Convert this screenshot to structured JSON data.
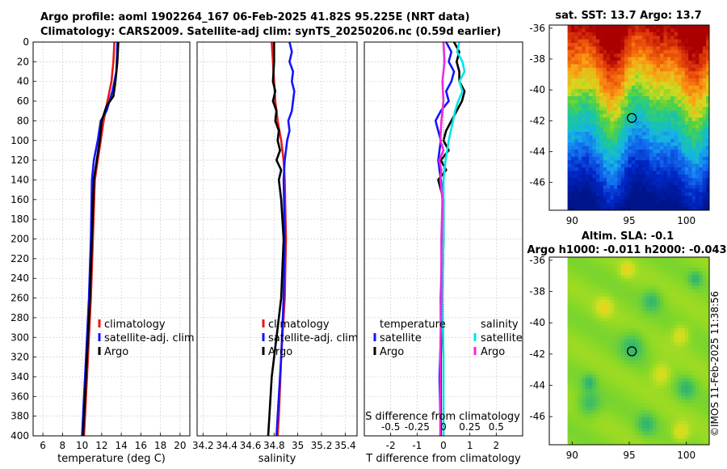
{
  "header": {
    "title_line1": "Argo profile: aoml 1902264_167 06-Feb-2025 41.82S 95.225E (NRT data)",
    "title_line2": "Climatology: CARS2009. Satellite-adj clim: synTS_20250206.nc (0.59d earlier)"
  },
  "credit": "©IMOS 11-Feb-2025 11:38:56",
  "colors": {
    "climatology": "#e41a1c",
    "satellite": "#1414ff",
    "argo": "#000000",
    "cyan": "#00e5e5",
    "magenta": "#ff22dd"
  },
  "chart_data": [
    {
      "type": "line",
      "id": "temperature",
      "xlabel": "temperature (deg C)",
      "xlim": [
        5,
        21
      ],
      "xticks": [
        6,
        8,
        10,
        12,
        14,
        16,
        18,
        20
      ],
      "ylim": [
        0,
        400
      ],
      "yticks": [
        0,
        20,
        40,
        60,
        80,
        100,
        120,
        140,
        160,
        180,
        200,
        220,
        240,
        260,
        280,
        300,
        320,
        340,
        360,
        380,
        400
      ],
      "legend": [
        "climatology",
        "satellite-adj. clim",
        "Argo"
      ],
      "series": [
        {
          "name": "climatology",
          "color": "#e41a1c",
          "points": [
            [
              13.3,
              0
            ],
            [
              13.2,
              20
            ],
            [
              13.0,
              40
            ],
            [
              12.6,
              60
            ],
            [
              12.2,
              80
            ],
            [
              11.9,
              100
            ],
            [
              11.6,
              120
            ],
            [
              11.3,
              140
            ],
            [
              11.1,
              200
            ],
            [
              10.9,
              260
            ],
            [
              10.6,
              320
            ],
            [
              10.3,
              380
            ],
            [
              10.2,
              400
            ]
          ]
        },
        {
          "name": "satellite-adj. clim",
          "color": "#1414ff",
          "points": [
            [
              13.6,
              0
            ],
            [
              13.5,
              30
            ],
            [
              13.1,
              50
            ],
            [
              12.5,
              70
            ],
            [
              11.9,
              80
            ],
            [
              11.6,
              100
            ],
            [
              11.2,
              120
            ],
            [
              11.0,
              140
            ],
            [
              10.9,
              200
            ],
            [
              10.7,
              260
            ],
            [
              10.4,
              320
            ],
            [
              10.1,
              380
            ],
            [
              10.0,
              400
            ]
          ]
        },
        {
          "name": "Argo",
          "color": "#000000",
          "points": [
            [
              13.7,
              0
            ],
            [
              13.6,
              20
            ],
            [
              13.4,
              40
            ],
            [
              13.2,
              55
            ],
            [
              12.5,
              65
            ],
            [
              12.0,
              80
            ],
            [
              11.8,
              100
            ],
            [
              11.5,
              120
            ],
            [
              11.2,
              140
            ],
            [
              11.0,
              200
            ],
            [
              10.8,
              260
            ],
            [
              10.5,
              320
            ],
            [
              10.2,
              380
            ],
            [
              10.1,
              400
            ]
          ]
        }
      ]
    },
    {
      "type": "line",
      "id": "salinity",
      "xlabel": "salinity",
      "xlim": [
        34.15,
        35.5
      ],
      "xticks": [
        34.2,
        34.4,
        34.6,
        34.8,
        35,
        35.2,
        35.4
      ],
      "xticklabels": [
        "34.2",
        "34.4",
        "34.6",
        "34.8",
        "35",
        "35.2",
        "35.4"
      ],
      "ylim": [
        0,
        400
      ],
      "legend": [
        "climatology",
        "satellite-adj. clim",
        "Argo"
      ],
      "series": [
        {
          "name": "climatology",
          "color": "#e41a1c",
          "points": [
            [
              34.78,
              0
            ],
            [
              34.79,
              20
            ],
            [
              34.8,
              40
            ],
            [
              34.81,
              60
            ],
            [
              34.83,
              80
            ],
            [
              34.86,
              100
            ],
            [
              34.88,
              120
            ],
            [
              34.89,
              140
            ],
            [
              34.9,
              200
            ],
            [
              34.89,
              260
            ],
            [
              34.86,
              320
            ],
            [
              34.84,
              380
            ],
            [
              34.83,
              400
            ]
          ]
        },
        {
          "name": "satellite-adj. clim",
          "color": "#1414ff",
          "points": [
            [
              34.93,
              0
            ],
            [
              34.95,
              10
            ],
            [
              34.93,
              20
            ],
            [
              34.96,
              30
            ],
            [
              34.95,
              40
            ],
            [
              34.97,
              50
            ],
            [
              34.96,
              60
            ],
            [
              34.95,
              70
            ],
            [
              34.92,
              80
            ],
            [
              34.93,
              90
            ],
            [
              34.91,
              100
            ],
            [
              34.89,
              120
            ],
            [
              34.88,
              140
            ],
            [
              34.89,
              200
            ],
            [
              34.88,
              260
            ],
            [
              34.86,
              320
            ],
            [
              34.83,
              380
            ],
            [
              34.82,
              400
            ]
          ]
        },
        {
          "name": "Argo",
          "color": "#000000",
          "points": [
            [
              34.8,
              0
            ],
            [
              34.8,
              20
            ],
            [
              34.79,
              40
            ],
            [
              34.81,
              50
            ],
            [
              34.79,
              60
            ],
            [
              34.82,
              70
            ],
            [
              34.81,
              80
            ],
            [
              34.84,
              90
            ],
            [
              34.83,
              100
            ],
            [
              34.85,
              110
            ],
            [
              34.82,
              120
            ],
            [
              34.86,
              130
            ],
            [
              34.84,
              140
            ],
            [
              34.86,
              160
            ],
            [
              34.88,
              200
            ],
            [
              34.86,
              260
            ],
            [
              34.82,
              300
            ],
            [
              34.78,
              340
            ],
            [
              34.76,
              380
            ],
            [
              34.75,
              400
            ]
          ]
        }
      ]
    },
    {
      "type": "line",
      "id": "difference",
      "xlabel": "T difference from climatology",
      "top_axis_label": "S difference from climatology",
      "xlim": [
        -3,
        3
      ],
      "xticks": [
        -2,
        -1,
        0,
        1,
        2
      ],
      "s_xlim": [
        -0.75,
        0.75
      ],
      "s_xticks": [
        -0.5,
        -0.25,
        0,
        0.25,
        0.5
      ],
      "s_xticklabels": [
        "-0.5",
        "-0.25",
        "0",
        "0.25",
        "0.5"
      ],
      "ylim": [
        0,
        400
      ],
      "legend_temperature": {
        "heading": "temperature",
        "items": [
          "satellite",
          "Argo"
        ]
      },
      "legend_salinity": {
        "heading": "salinity",
        "items": [
          "satellite",
          "Argo"
        ]
      },
      "series": [
        {
          "name": "temperature satellite",
          "color": "#1414ff",
          "axis": "T",
          "points": [
            [
              0.1,
              0
            ],
            [
              0.3,
              10
            ],
            [
              0.2,
              20
            ],
            [
              0.4,
              30
            ],
            [
              0.3,
              40
            ],
            [
              0.1,
              50
            ],
            [
              0.2,
              60
            ],
            [
              -0.1,
              70
            ],
            [
              -0.3,
              80
            ],
            [
              -0.1,
              100
            ],
            [
              -0.2,
              120
            ],
            [
              -0.1,
              140
            ],
            [
              0,
              160
            ],
            [
              -0.05,
              200
            ],
            [
              -0.1,
              260
            ],
            [
              -0.1,
              300
            ],
            [
              -0.15,
              340
            ],
            [
              -0.1,
              400
            ]
          ]
        },
        {
          "name": "temperature Argo",
          "color": "#000000",
          "axis": "T",
          "points": [
            [
              0.4,
              0
            ],
            [
              0.6,
              10
            ],
            [
              0.5,
              20
            ],
            [
              0.6,
              30
            ],
            [
              0.6,
              40
            ],
            [
              0.8,
              50
            ],
            [
              0.7,
              60
            ],
            [
              0.5,
              70
            ],
            [
              0.3,
              80
            ],
            [
              0.1,
              90
            ],
            [
              0,
              100
            ],
            [
              0.2,
              110
            ],
            [
              -0.1,
              120
            ],
            [
              0.1,
              130
            ],
            [
              -0.2,
              140
            ],
            [
              0,
              160
            ],
            [
              0,
              200
            ],
            [
              -0.05,
              260
            ],
            [
              -0.1,
              320
            ],
            [
              -0.1,
              400
            ]
          ]
        },
        {
          "name": "salinity satellite",
          "color": "#00e5e5",
          "axis": "S",
          "points": [
            [
              0.15,
              0
            ],
            [
              0.13,
              10
            ],
            [
              0.18,
              20
            ],
            [
              0.2,
              30
            ],
            [
              0.15,
              40
            ],
            [
              0.18,
              50
            ],
            [
              0.14,
              60
            ],
            [
              0.11,
              70
            ],
            [
              0.09,
              80
            ],
            [
              0.07,
              90
            ],
            [
              0.05,
              100
            ],
            [
              0.02,
              120
            ],
            [
              0,
              140
            ],
            [
              0,
              200
            ],
            [
              -0.01,
              260
            ],
            [
              0,
              320
            ],
            [
              0,
              400
            ]
          ]
        },
        {
          "name": "salinity Argo",
          "color": "#ff22dd",
          "axis": "S",
          "points": [
            [
              0,
              0
            ],
            [
              0.01,
              20
            ],
            [
              -0.01,
              40
            ],
            [
              0,
              60
            ],
            [
              -0.02,
              80
            ],
            [
              -0.03,
              100
            ],
            [
              0,
              110
            ],
            [
              -0.04,
              120
            ],
            [
              -0.02,
              130
            ],
            [
              -0.03,
              140
            ],
            [
              -0.01,
              160
            ],
            [
              -0.02,
              200
            ],
            [
              -0.02,
              260
            ],
            [
              -0.03,
              320
            ],
            [
              -0.03,
              400
            ]
          ]
        }
      ]
    },
    {
      "type": "heatmap",
      "id": "sst_map",
      "title": "sat. SST: 13.7 Argo: 13.7",
      "xlim": [
        88,
        102
      ],
      "ylim": [
        -47.8,
        -35.8
      ],
      "xticks": [
        90,
        95,
        100
      ],
      "yticks": [
        -36,
        -38,
        -40,
        -42,
        -44,
        -46
      ],
      "data_xmin": 89.6,
      "marker": {
        "lon": 95.225,
        "lat": -41.82
      }
    },
    {
      "type": "heatmap",
      "id": "sla_map",
      "title_line1": "Altim. SLA: -0.1",
      "title_line2": "Argo h1000: -0.011 h2000: -0.043",
      "xlim": [
        88,
        102
      ],
      "ylim": [
        -47.8,
        -35.8
      ],
      "xticks": [
        90,
        95,
        100
      ],
      "yticks": [
        -36,
        -38,
        -40,
        -42,
        -44,
        -46
      ],
      "data_xmin": 89.6,
      "marker": {
        "lon": 95.225,
        "lat": -41.82
      }
    }
  ]
}
